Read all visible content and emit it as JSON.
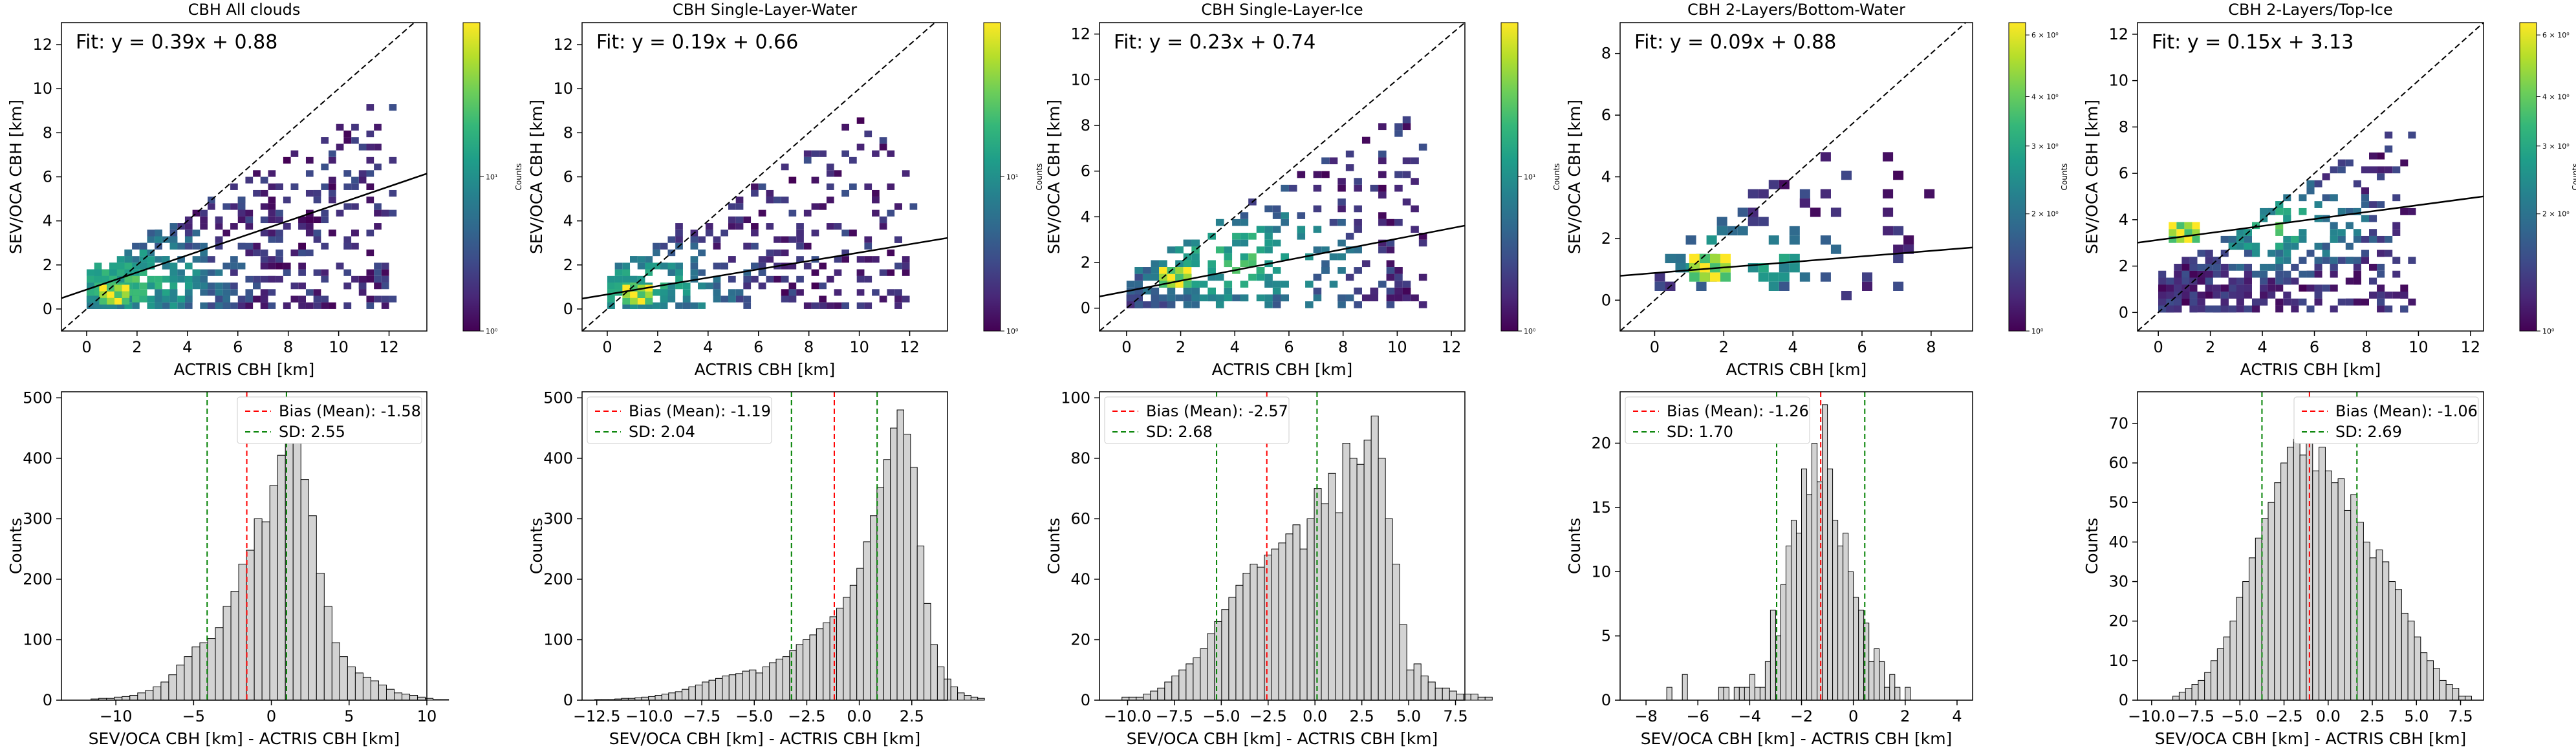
{
  "colors": {
    "hist_fill": "#d3d3d3",
    "hist_edge": "#000000",
    "bias_line": "#ff0000",
    "sd_line": "#008000",
    "fit_line": "#000000",
    "one_to_one": "#000000"
  },
  "colormap": "viridis",
  "chart_data": [
    {
      "type": "heatmap",
      "title": "CBH All clouds",
      "xlabel": "ACTRIS CBH [km]",
      "ylabel": "SEV/OCA CBH [km]",
      "fit_label": "Fit: y = 0.39x + 0.88",
      "fit": {
        "slope": 0.39,
        "intercept": 0.88
      },
      "xlim": [
        -1,
        13.5
      ],
      "ylim": [
        -1,
        13
      ],
      "xticks": [
        0,
        2,
        4,
        6,
        8,
        10,
        12
      ],
      "yticks": [
        0,
        2,
        4,
        6,
        8,
        10,
        12
      ],
      "colorbar": {
        "label": "Counts",
        "ticks": [
          "10⁰",
          "10¹"
        ]
      }
    },
    {
      "type": "heatmap",
      "title": "CBH Single-Layer-Water",
      "xlabel": "ACTRIS CBH [km]",
      "ylabel": "SEV/OCA CBH [km]",
      "fit_label": "Fit: y = 0.19x + 0.66",
      "fit": {
        "slope": 0.19,
        "intercept": 0.66
      },
      "xlim": [
        -1,
        13.5
      ],
      "ylim": [
        -1,
        13
      ],
      "xticks": [
        0,
        2,
        4,
        6,
        8,
        10,
        12
      ],
      "yticks": [
        0,
        2,
        4,
        6,
        8,
        10,
        12
      ],
      "colorbar": {
        "label": "Counts",
        "ticks": [
          "10⁰",
          "10¹"
        ]
      }
    },
    {
      "type": "heatmap",
      "title": "CBH Single-Layer-Ice",
      "xlabel": "ACTRIS CBH [km]",
      "ylabel": "SEV/OCA CBH [km]",
      "fit_label": "Fit: y = 0.23x + 0.74",
      "fit": {
        "slope": 0.23,
        "intercept": 0.74
      },
      "xlim": [
        -1,
        12.5
      ],
      "ylim": [
        -1,
        12.5
      ],
      "xticks": [
        0,
        2,
        4,
        6,
        8,
        10,
        12
      ],
      "yticks": [
        0,
        2,
        4,
        6,
        8,
        10,
        12
      ],
      "colorbar": {
        "label": "Counts",
        "ticks": [
          "10⁰",
          "10¹"
        ]
      }
    },
    {
      "type": "heatmap",
      "title": "CBH 2-Layers/Bottom-Water",
      "xlabel": "ACTRIS CBH [km]",
      "ylabel": "SEV/OCA CBH [km]",
      "fit_label": "Fit: y = 0.09x + 0.88",
      "fit": {
        "slope": 0.09,
        "intercept": 0.88
      },
      "xlim": [
        -1,
        9.2
      ],
      "ylim": [
        -1,
        9
      ],
      "xticks": [
        0,
        2,
        4,
        6,
        8
      ],
      "yticks": [
        0,
        2,
        4,
        6,
        8
      ],
      "colorbar": {
        "label": "Counts",
        "ticks": [
          "10⁰",
          "2 × 10⁰",
          "3 × 10⁰",
          "4 × 10⁰",
          "6 × 10⁰"
        ]
      }
    },
    {
      "type": "heatmap",
      "title": "CBH 2-Layers/Top-Ice",
      "xlabel": "ACTRIS CBH [km]",
      "ylabel": "SEV/OCA CBH [km]",
      "fit_label": "Fit: y = 0.15x + 3.13",
      "fit": {
        "slope": 0.15,
        "intercept": 3.13
      },
      "xlim": [
        -0.8,
        12.5
      ],
      "ylim": [
        -0.8,
        12.5
      ],
      "xticks": [
        0,
        2,
        4,
        6,
        8,
        10,
        12
      ],
      "yticks": [
        0,
        2,
        4,
        6,
        8,
        10,
        12
      ],
      "colorbar": {
        "label": "Counts",
        "ticks": [
          "10⁰",
          "2 × 10⁰",
          "3 × 10⁰",
          "4 × 10⁰",
          "6 × 10⁰"
        ]
      }
    },
    {
      "type": "bar",
      "xlabel": "SEV/OCA CBH [km] - ACTRIS CBH [km]",
      "ylabel": "Counts",
      "legend": [
        "Bias (Mean): -1.58",
        "SD: 2.55"
      ],
      "bias": -1.58,
      "sd": 2.55,
      "xlim": [
        -13.5,
        10
      ],
      "ylim": [
        0,
        510
      ],
      "xticks": [
        -10,
        -5,
        0,
        5,
        10
      ],
      "yticks": [
        0,
        100,
        200,
        300,
        400,
        500
      ],
      "bin_start": -11.6,
      "bin_width": 0.5,
      "counts": [
        2,
        3,
        3,
        5,
        6,
        8,
        12,
        16,
        22,
        30,
        42,
        58,
        72,
        88,
        95,
        102,
        120,
        155,
        180,
        225,
        248,
        300,
        295,
        355,
        405,
        478,
        445,
        365,
        305,
        210,
        155,
        95,
        72,
        55,
        45,
        38,
        32,
        25,
        18,
        12,
        10,
        8,
        5,
        3,
        1,
        1
      ]
    },
    {
      "type": "bar",
      "xlabel": "SEV/OCA CBH [km] - ACTRIS CBH [km]",
      "ylabel": "Counts",
      "legend": [
        "Bias (Mean): -1.19",
        "SD: 2.04"
      ],
      "bias": -1.19,
      "sd": 2.04,
      "xlim": [
        -13.2,
        4.2
      ],
      "ylim": [
        0,
        510
      ],
      "xticks": [
        -12.5,
        -10.0,
        -7.5,
        -5.0,
        -2.5,
        0.0,
        2.5
      ],
      "xtick_labels": [
        "−12.5",
        "−10.0",
        "−7.5",
        "−5.0",
        "−2.5",
        "0.0",
        "2.5"
      ],
      "yticks": [
        0,
        100,
        200,
        300,
        400,
        500
      ],
      "bin_start": -12.6,
      "bin_width": 0.32,
      "counts": [
        1,
        1,
        1,
        2,
        3,
        3,
        4,
        5,
        6,
        8,
        10,
        12,
        14,
        18,
        22,
        25,
        30,
        33,
        36,
        40,
        42,
        44,
        48,
        50,
        45,
        55,
        62,
        68,
        72,
        82,
        92,
        100,
        108,
        118,
        128,
        138,
        152,
        170,
        190,
        218,
        262,
        305,
        352,
        398,
        450,
        480,
        440,
        385,
        255,
        160,
        92,
        55,
        35,
        22,
        12,
        8,
        5,
        3
      ]
    },
    {
      "type": "bar",
      "xlabel": "SEV/OCA CBH [km] - ACTRIS CBH [km]",
      "ylabel": "Counts",
      "legend": [
        "Bias (Mean): -2.57",
        "SD: 2.68"
      ],
      "bias": -2.57,
      "sd": 2.68,
      "xlim": [
        -11.5,
        8
      ],
      "ylim": [
        0,
        102
      ],
      "xticks": [
        -10.0,
        -7.5,
        -5.0,
        -2.5,
        0.0,
        2.5,
        5.0,
        7.5
      ],
      "xtick_labels": [
        "−10.0",
        "−7.5",
        "−5.0",
        "−2.5",
        "0.0",
        "2.5",
        "5.0",
        "7.5"
      ],
      "yticks": [
        0,
        20,
        40,
        60,
        80,
        100
      ],
      "bin_start": -10.3,
      "bin_width": 0.38,
      "counts": [
        1,
        1,
        1,
        2,
        3,
        4,
        6,
        8,
        10,
        12,
        14,
        17,
        22,
        26,
        30,
        34,
        38,
        42,
        45,
        44,
        48,
        50,
        52,
        55,
        58,
        50,
        60,
        70,
        65,
        75,
        62,
        85,
        80,
        78,
        86,
        94,
        80,
        60,
        45,
        25,
        10,
        12,
        8,
        6,
        4,
        4,
        3,
        2,
        2,
        2,
        1,
        1
      ]
    },
    {
      "type": "bar",
      "xlabel": "SEV/OCA CBH [km] - ACTRIS CBH [km]",
      "ylabel": "Counts",
      "legend": [
        "Bias (Mean): -1.26",
        "SD: 1.70"
      ],
      "bias": -1.26,
      "sd": 1.7,
      "xlim": [
        -9,
        4.6
      ],
      "ylim": [
        0,
        24
      ],
      "xticks": [
        -8,
        -6,
        -4,
        -2,
        0,
        2,
        4
      ],
      "xtick_labels": [
        "−8",
        "−6",
        "−4",
        "−2",
        "0",
        "2",
        "4"
      ],
      "yticks": [
        0,
        5,
        10,
        15,
        20
      ],
      "bin_start": -7.2,
      "bin_width": 0.2,
      "counts": [
        1,
        0,
        0,
        2,
        0,
        0,
        0,
        0,
        0,
        0,
        1,
        1,
        0,
        1,
        1,
        1,
        2,
        1,
        1,
        3,
        7,
        5,
        9,
        12,
        14,
        13,
        18,
        16,
        20,
        17,
        23,
        18,
        14,
        12,
        13,
        10,
        8,
        7,
        6,
        3,
        4,
        3,
        1,
        2,
        1,
        0,
        1
      ]
    },
    {
      "type": "bar",
      "xlabel": "SEV/OCA CBH [km] - ACTRIS CBH [km]",
      "ylabel": "Counts",
      "legend": [
        "Bias (Mean): -1.06",
        "SD: 2.69"
      ],
      "bias": -1.06,
      "sd": 2.69,
      "xlim": [
        -10.8,
        8.8
      ],
      "ylim": [
        0,
        78
      ],
      "xticks": [
        -10.0,
        -7.5,
        -5.0,
        -2.5,
        0.0,
        2.5,
        5.0,
        7.5
      ],
      "xtick_labels": [
        "−10.0",
        "−7.5",
        "−5.0",
        "−2.5",
        "0.0",
        "2.5",
        "5.0",
        "7.5"
      ],
      "yticks": [
        0,
        10,
        20,
        30,
        40,
        50,
        60,
        70
      ],
      "bin_start": -8.8,
      "bin_width": 0.36,
      "counts": [
        1,
        2,
        3,
        4,
        5,
        7,
        10,
        13,
        16,
        20,
        26,
        30,
        36,
        41,
        46,
        50,
        55,
        60,
        64,
        66,
        62,
        67,
        58,
        64,
        58,
        55,
        56,
        48,
        52,
        45,
        40,
        36,
        38,
        35,
        30,
        28,
        22,
        20,
        16,
        12,
        10,
        8,
        5,
        4,
        3,
        1,
        1
      ]
    }
  ]
}
